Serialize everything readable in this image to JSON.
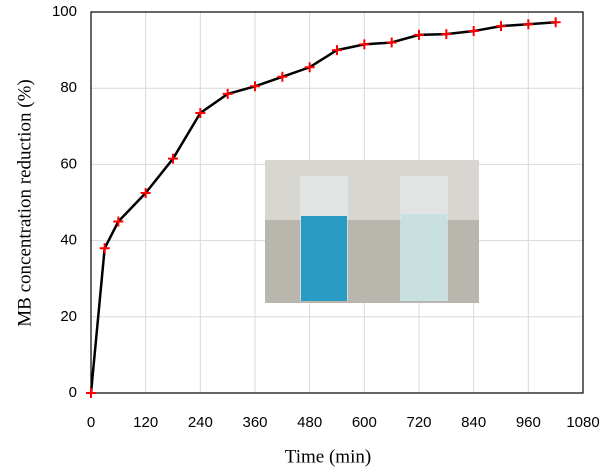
{
  "chart_data": {
    "type": "line",
    "x": [
      0,
      30,
      60,
      120,
      180,
      240,
      300,
      360,
      420,
      480,
      540,
      600,
      660,
      720,
      780,
      840,
      900,
      960,
      1020
    ],
    "values": [
      0,
      38,
      45,
      52.5,
      61.5,
      73.5,
      78.5,
      80.5,
      83,
      85.5,
      90,
      91.5,
      92,
      94,
      94.2,
      95,
      96.3,
      96.8,
      97.3
    ],
    "color": "#000000",
    "marker_color": "#ff0000",
    "xlabel": "Time (min)",
    "ylabel": "MB concentration reduction (%)",
    "xlim": [
      0,
      1080
    ],
    "xticks": [
      0,
      120,
      240,
      360,
      480,
      600,
      720,
      840,
      960,
      1080
    ],
    "ylim": [
      0,
      100
    ],
    "yticks": [
      0,
      20,
      40,
      60,
      80,
      100
    ],
    "grid": true
  }
}
